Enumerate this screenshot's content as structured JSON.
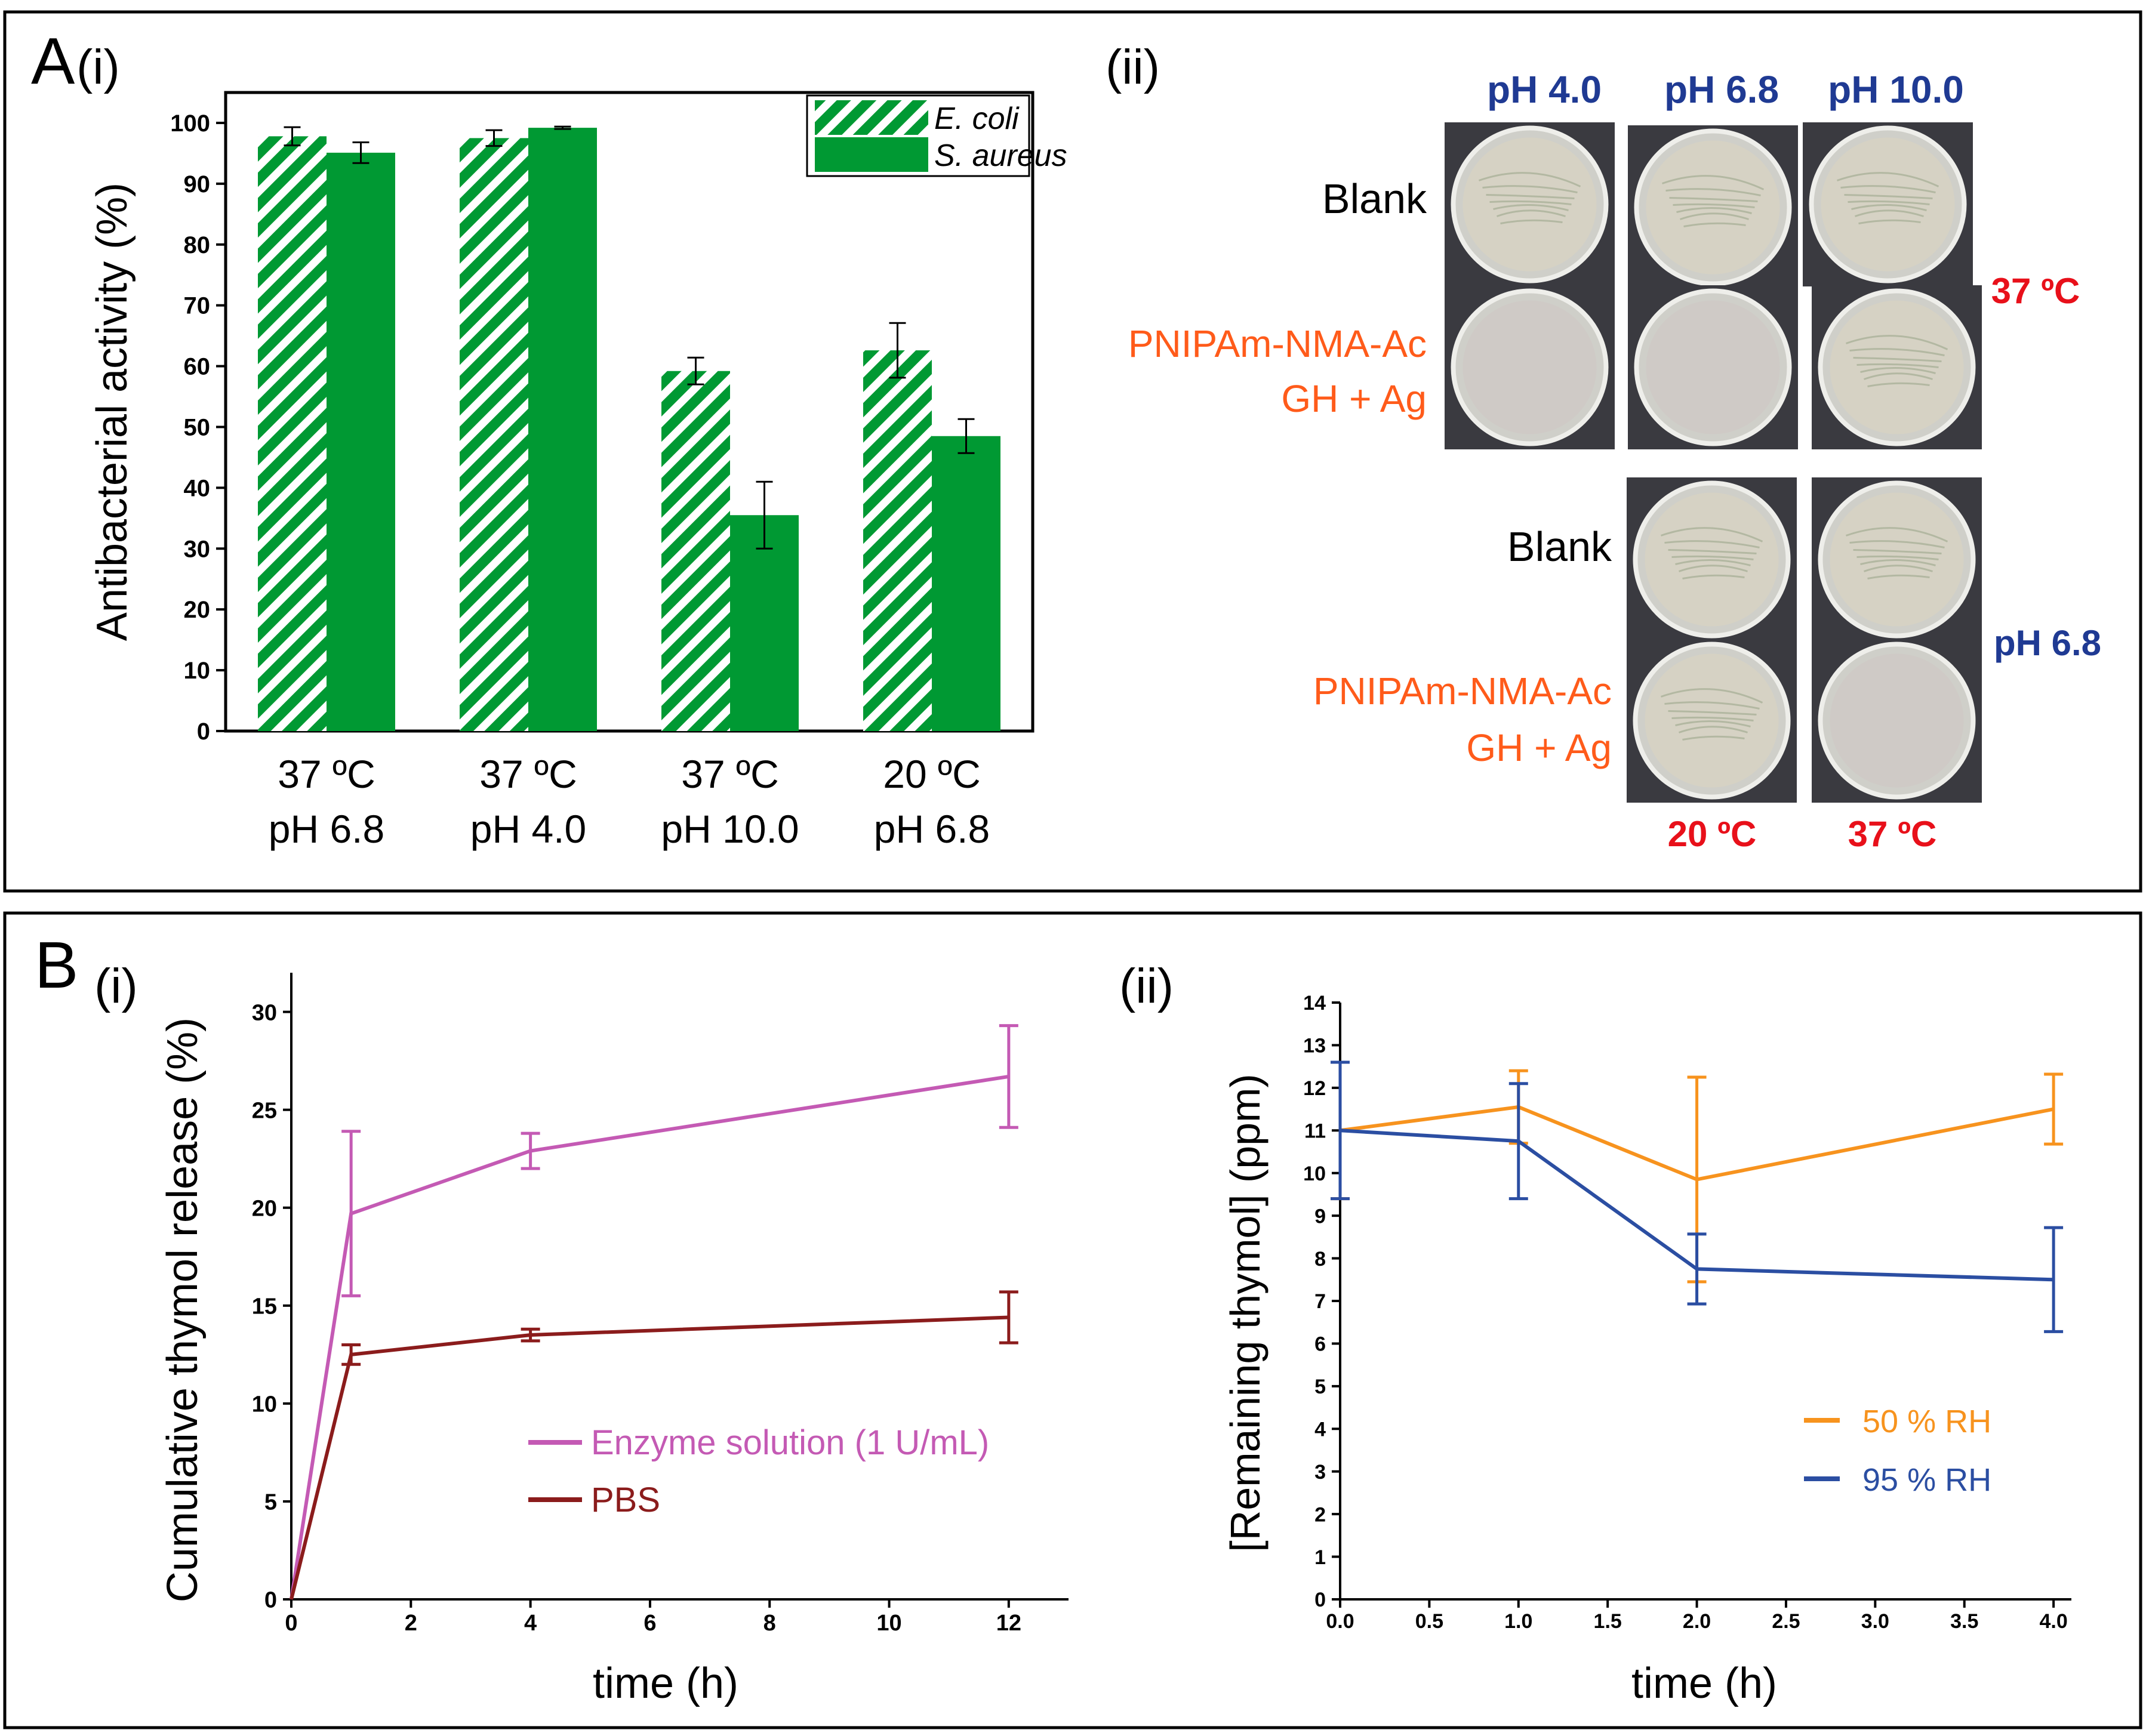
{
  "panelA": {
    "label": "A",
    "i": {
      "label": "(i)",
      "chart_data": {
        "type": "bar",
        "ylabel": "Antibacterial activity (%)",
        "ylim": [
          0,
          105
        ],
        "yticks": [
          0,
          10,
          20,
          30,
          40,
          50,
          60,
          70,
          80,
          90,
          100
        ],
        "categories": [
          [
            "37 ºC",
            "pH 6.8"
          ],
          [
            "37 ºC",
            "pH 4.0"
          ],
          [
            "37 ºC",
            "pH 10.0"
          ],
          [
            "20 ºC",
            "pH 6.8"
          ]
        ],
        "series": [
          {
            "name": "E. coli",
            "pattern": "hatched",
            "values": [
              97.8,
              97.5,
              59.2,
              62.6
            ],
            "errors": [
              1.5,
              1.3,
              2.2,
              4.5
            ]
          },
          {
            "name": "S. aureus",
            "pattern": "solid",
            "values": [
              95.1,
              99.2,
              35.5,
              48.5
            ],
            "errors": [
              1.7,
              0.2,
              5.5,
              2.8
            ]
          }
        ],
        "legend": [
          "E. coli",
          "S. aureus"
        ],
        "legend_position": "top-right",
        "colors": {
          "bar": "#009933",
          "axis": "#000000"
        }
      }
    },
    "ii": {
      "label": "(ii)",
      "col_headers": [
        "pH 4.0",
        "pH 6.8",
        "pH 10.0"
      ],
      "row_labels_top": [
        "Blank",
        "PNIPAm-NMA-Ac",
        "GH + Ag"
      ],
      "side_label_top": "37 ºC",
      "row_labels_bottom": [
        "Blank",
        "PNIPAm-NMA-Ac",
        "GH + Ag"
      ],
      "side_label_bottom": "pH 6.8",
      "bottom_labels": [
        "20 ºC",
        "37 ºC"
      ],
      "colors": {
        "blue": "#1f3a93",
        "orange": "#ff5b1a",
        "red": "#e8101a"
      }
    }
  },
  "panelB": {
    "label": "B",
    "i": {
      "label": "(i)",
      "chart_data": {
        "type": "line",
        "xlabel": "time (h)",
        "ylabel": "Cumulative thymol release (%)",
        "xlim": [
          0,
          13
        ],
        "ylim": [
          0,
          32
        ],
        "xticks": [
          0,
          2,
          4,
          6,
          8,
          10,
          12
        ],
        "yticks": [
          0,
          5,
          10,
          15,
          20,
          25,
          30
        ],
        "series": [
          {
            "name": "Enzyme solution (1 U/mL)",
            "color": "#c45ab4",
            "x": [
              0,
              1,
              4,
              12
            ],
            "y": [
              0,
              19.7,
              22.9,
              26.7
            ],
            "errors": [
              0,
              4.2,
              0.9,
              2.6
            ]
          },
          {
            "name": "PBS",
            "color": "#8b1c1c",
            "x": [
              0,
              1,
              4,
              12
            ],
            "y": [
              0,
              12.5,
              13.5,
              14.4
            ],
            "errors": [
              0,
              0.5,
              0.3,
              1.3
            ]
          }
        ],
        "legend_position": "lower-right"
      }
    },
    "ii": {
      "label": "(ii)",
      "chart_data": {
        "type": "line",
        "xlabel": "time (h)",
        "ylabel": "[Remaining thymol] (ppm)",
        "xlim": [
          0,
          4.1
        ],
        "ylim": [
          0,
          14
        ],
        "xticks": [
          "0.0",
          "0.5",
          "1.0",
          "1.5",
          "2.0",
          "2.5",
          "3.0",
          "3.5",
          "4.0"
        ],
        "yticks": [
          0,
          1,
          2,
          3,
          4,
          5,
          6,
          7,
          8,
          9,
          10,
          11,
          12,
          13,
          14
        ],
        "series": [
          {
            "name": "50 % RH",
            "color": "#f7931e",
            "x": [
              0,
              1,
              2,
              4
            ],
            "y": [
              11.0,
              11.55,
              9.85,
              11.5
            ],
            "errors": [
              1.6,
              0.85,
              2.4,
              0.82
            ]
          },
          {
            "name": "95 % RH",
            "color": "#2b4ea2",
            "x": [
              0,
              1,
              2,
              4
            ],
            "y": [
              11.0,
              10.75,
              7.75,
              7.5
            ],
            "errors": [
              1.6,
              1.35,
              0.82,
              1.22
            ]
          }
        ],
        "legend_position": "lower-right"
      }
    }
  }
}
